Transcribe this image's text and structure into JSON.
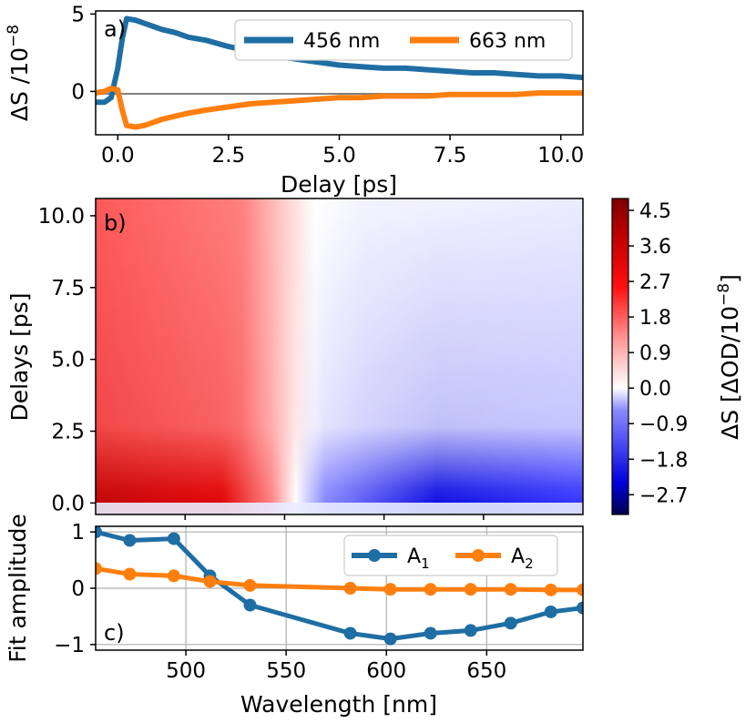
{
  "chart_data": [
    {
      "type": "line",
      "panel_label": "a)",
      "xlabel": "Delay [ps]",
      "ylabel": "ΔS /10",
      "ylabel_exp": "−8",
      "xlim": [
        -0.5,
        10.5
      ],
      "ylim": [
        -2.8,
        5.2
      ],
      "xticks": [
        "0.0",
        "2.5",
        "5.0",
        "7.5",
        "10.0"
      ],
      "yticks": [
        "5",
        "0"
      ],
      "zero_line": true,
      "legend_position": "top-right",
      "series": [
        {
          "name": "456 nm",
          "color": "#1f6ea3",
          "x": [
            -0.5,
            -0.3,
            -0.15,
            0,
            0.1,
            0.2,
            0.4,
            0.6,
            0.8,
            1,
            1.3,
            1.6,
            2,
            2.5,
            3,
            3.5,
            4,
            4.5,
            5,
            5.5,
            6,
            6.5,
            7,
            7.5,
            8,
            8.5,
            9,
            9.5,
            10,
            10.5
          ],
          "y": [
            -0.7,
            -0.7,
            -0.4,
            1.5,
            3.4,
            4.7,
            4.6,
            4.4,
            4.2,
            4.0,
            3.8,
            3.5,
            3.3,
            2.9,
            2.6,
            2.3,
            2.1,
            1.9,
            1.7,
            1.6,
            1.5,
            1.5,
            1.4,
            1.3,
            1.2,
            1.2,
            1.1,
            1.0,
            1.0,
            0.9
          ]
        },
        {
          "name": "663 nm",
          "color": "#ff7f0e",
          "x": [
            -0.5,
            -0.3,
            -0.15,
            0,
            0.1,
            0.2,
            0.4,
            0.6,
            0.8,
            1,
            1.3,
            1.6,
            2,
            2.5,
            3,
            3.5,
            4,
            4.5,
            5,
            5.5,
            6,
            6.5,
            7,
            7.5,
            8,
            8.5,
            9,
            9.5,
            10,
            10.5
          ],
          "y": [
            -0.1,
            0.0,
            0.2,
            0.1,
            -1.2,
            -2.2,
            -2.3,
            -2.2,
            -2.0,
            -1.8,
            -1.6,
            -1.4,
            -1.2,
            -1.0,
            -0.8,
            -0.7,
            -0.6,
            -0.5,
            -0.4,
            -0.4,
            -0.3,
            -0.3,
            -0.3,
            -0.2,
            -0.2,
            -0.2,
            -0.2,
            -0.1,
            -0.1,
            -0.1
          ]
        }
      ]
    },
    {
      "type": "heatmap",
      "panel_label": "b)",
      "xlabel": "",
      "ylabel": "Delays [ps]",
      "xlim": [
        455,
        700
      ],
      "ylim": [
        -0.4,
        10.6
      ],
      "yticks": [
        "0.0",
        "2.5",
        "5.0",
        "7.5",
        "10.0"
      ],
      "colormap": "seismic",
      "colorbar_label": "ΔS [ΔOD/10",
      "colorbar_label_exp": "−8",
      "colorbar_label_suffix": "]",
      "colorbar_range": [
        -3.2,
        4.8
      ],
      "colorbar_ticks": [
        "4.5",
        "3.6",
        "2.7",
        "1.8",
        "0.9",
        "0.0",
        "−0.9",
        "−1.8",
        "−2.7"
      ],
      "colorbar_tick_values": [
        4.5,
        3.6,
        2.7,
        1.8,
        0.9,
        0.0,
        -0.9,
        -1.8,
        -2.7
      ],
      "description": "positive signal (red) below ~515 nm strongest at early delays, negative signal (blue) from ~525-700 nm strongest near 600 nm at early delays"
    },
    {
      "type": "line",
      "panel_label": "c)",
      "xlabel": "Wavelength [nm]",
      "ylabel": "Fit amplitude",
      "xlim": [
        455,
        698
      ],
      "ylim": [
        -1.1,
        1.1
      ],
      "xticks": [
        "500",
        "550",
        "600",
        "650"
      ],
      "xtick_values": [
        500,
        550,
        600,
        650
      ],
      "yticks": [
        "1",
        "0",
        "−1"
      ],
      "ytick_values": [
        1,
        0,
        -1
      ],
      "grid": true,
      "legend_position": "top-right",
      "series": [
        {
          "name": "A",
          "subscript": "1",
          "color": "#1f6ea3",
          "x": [
            455,
            472,
            494,
            512,
            532,
            582,
            602,
            622,
            642,
            662,
            682,
            698
          ],
          "y": [
            1.0,
            0.85,
            0.88,
            0.22,
            -0.3,
            -0.8,
            -0.9,
            -0.8,
            -0.75,
            -0.62,
            -0.42,
            -0.35
          ]
        },
        {
          "name": "A",
          "subscript": "2",
          "color": "#ff7f0e",
          "x": [
            455,
            472,
            494,
            512,
            532,
            582,
            602,
            622,
            642,
            662,
            682,
            698
          ],
          "y": [
            0.35,
            0.25,
            0.22,
            0.12,
            0.05,
            0.0,
            -0.02,
            -0.02,
            -0.02,
            -0.02,
            -0.03,
            -0.03
          ]
        }
      ]
    }
  ]
}
